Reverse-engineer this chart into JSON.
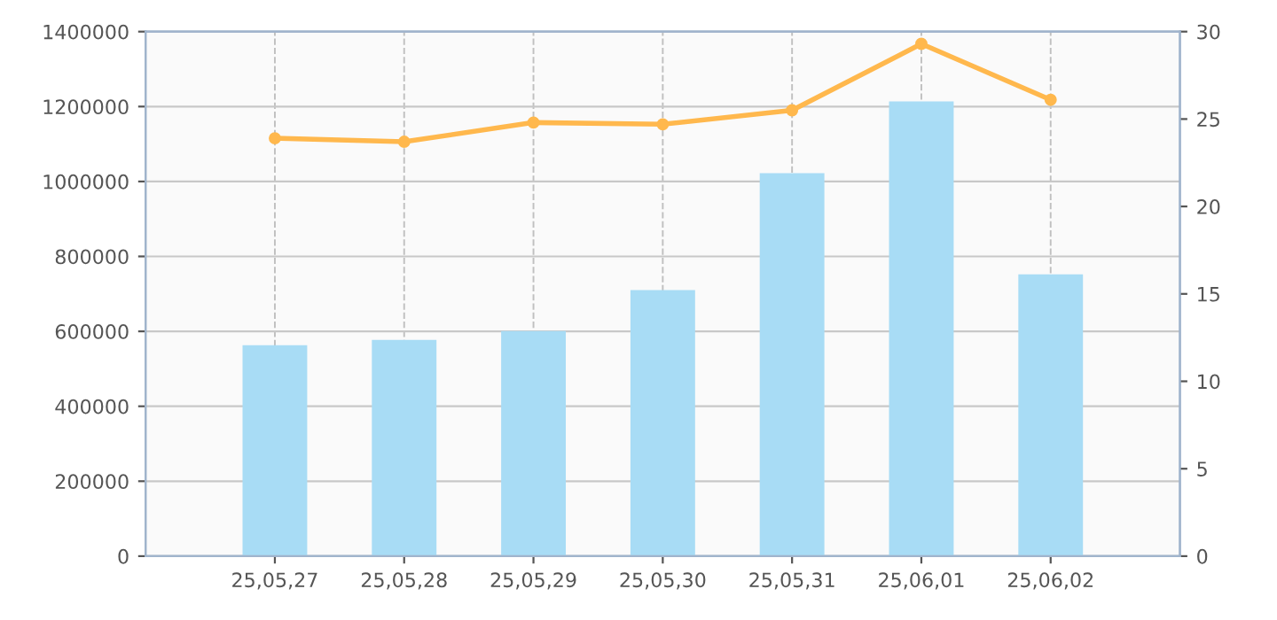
{
  "chart_data": {
    "type": "bar",
    "categories": [
      "25,05,27",
      "25,05,28",
      "25,05,29",
      "25,05,30",
      "25,05,31",
      "25,06,01",
      "25,06,02"
    ],
    "series": [
      {
        "color": "#a8dcf5",
        "values": [
          563000,
          577000,
          601000,
          710000,
          1022000,
          1214000,
          752000
        ]
      },
      {
        "type": "line",
        "axis": "y2",
        "color": "#ffb84d",
        "marker": "circle",
        "line_style": "solid",
        "values": [
          23.9,
          23.7,
          24.8,
          24.7,
          25.5,
          29.3,
          26.1
        ]
      }
    ],
    "ylim": [
      0,
      1400000
    ],
    "yticks": [
      0,
      200000,
      400000,
      600000,
      800000,
      1000000,
      1200000,
      1400000
    ],
    "y2lim": [
      0,
      30
    ],
    "y2ticks": [
      0,
      5,
      10,
      15,
      20,
      25,
      30
    ],
    "grid": true
  }
}
